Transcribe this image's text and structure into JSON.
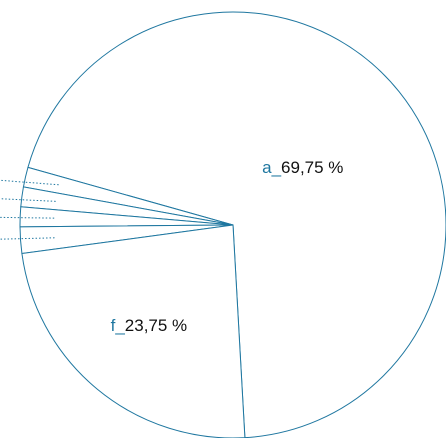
{
  "chart_data": {
    "type": "pie",
    "categories": [
      "a_",
      null,
      null,
      null,
      null,
      "f_"
    ],
    "values": [
      69.75,
      1.5,
      1.5,
      1.5,
      2.0,
      23.75
    ],
    "value_labels": [
      "69,75 %",
      null,
      null,
      null,
      null,
      "23,75 %"
    ],
    "color": "#ffffff",
    "edge_color": "#1f77a0",
    "label_color": "#1f77a0"
  }
}
